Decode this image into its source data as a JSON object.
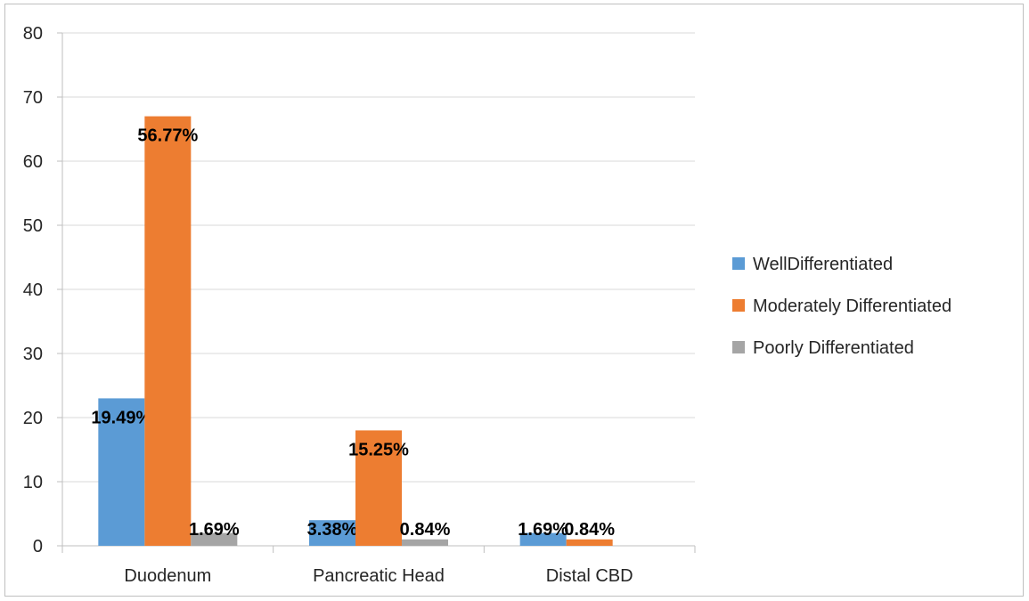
{
  "chart_data": {
    "type": "bar",
    "categories": [
      "Duodenum",
      "Pancreatic Head",
      "Distal CBD"
    ],
    "series": [
      {
        "name": "WellDifferentiated",
        "values": [
          23,
          4,
          2
        ],
        "labels": [
          "19.49%",
          "3.38%",
          "1.69%"
        ],
        "color": "#5b9bd5"
      },
      {
        "name": "Moderately Differentiated",
        "values": [
          67,
          18,
          1
        ],
        "labels": [
          "56.77%",
          "15.25%",
          "0.84%"
        ],
        "color": "#ed7d31"
      },
      {
        "name": "Poorly Differentiated",
        "values": [
          2,
          1,
          0
        ],
        "labels": [
          "1.69%",
          "0.84%",
          ""
        ],
        "color": "#a5a5a5"
      }
    ],
    "title": "",
    "xlabel": "",
    "ylabel": "",
    "ylim": [
      0,
      80
    ],
    "yticks": [
      0,
      10,
      20,
      30,
      40,
      50,
      60,
      70,
      80
    ],
    "grid": true,
    "legend": "right"
  }
}
